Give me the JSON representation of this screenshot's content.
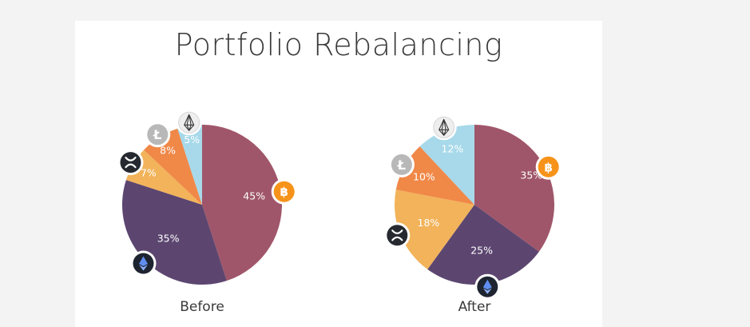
{
  "title": "Portfolio Rebalancing",
  "colors": {
    "bitcoin": "#a0566a",
    "ethereum": "#5c4670",
    "ripple": "#f2b35a",
    "litecoin": "#f08848",
    "eos": "#a7d9ea",
    "background": "#f3f3f3",
    "card": "#ffffff"
  },
  "chart_data": [
    {
      "type": "pie",
      "label": "Before",
      "slices": [
        {
          "key": "bitcoin",
          "icon": "bitcoin-icon",
          "value": 45,
          "label": "45%"
        },
        {
          "key": "ethereum",
          "icon": "ethereum-icon",
          "value": 35,
          "label": "35%"
        },
        {
          "key": "ripple",
          "icon": "ripple-icon",
          "value": 7,
          "label": "7%"
        },
        {
          "key": "litecoin",
          "icon": "litecoin-icon",
          "value": 8,
          "label": "8%"
        },
        {
          "key": "eos",
          "icon": "eos-icon",
          "value": 5,
          "label": "5%"
        }
      ]
    },
    {
      "type": "pie",
      "label": "After",
      "slices": [
        {
          "key": "bitcoin",
          "icon": "bitcoin-icon",
          "value": 35,
          "label": "35%"
        },
        {
          "key": "ethereum",
          "icon": "ethereum-icon",
          "value": 25,
          "label": "25%"
        },
        {
          "key": "ripple",
          "icon": "ripple-icon",
          "value": 18,
          "label": "18%"
        },
        {
          "key": "litecoin",
          "icon": "litecoin-icon",
          "value": 10,
          "label": "10%"
        },
        {
          "key": "eos",
          "icon": "eos-icon",
          "value": 12,
          "label": "12%"
        }
      ]
    }
  ]
}
